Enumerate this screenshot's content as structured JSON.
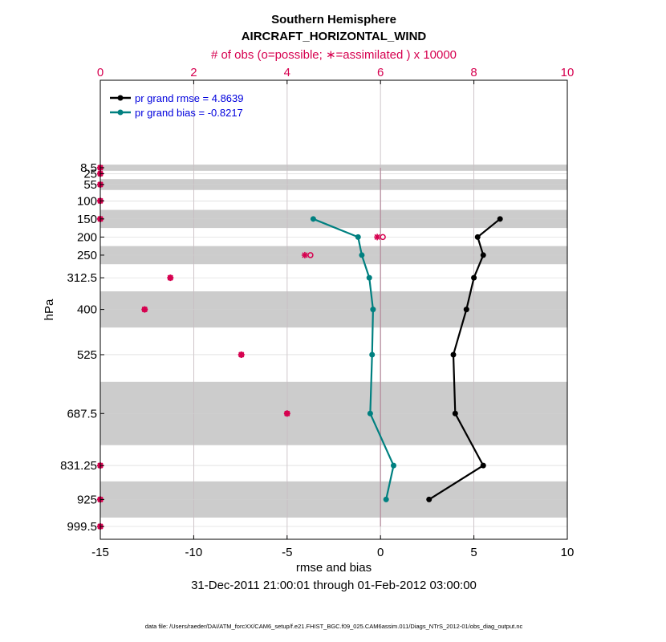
{
  "chart_data": {
    "type": "line",
    "title": "Southern Hemisphere",
    "subtitle": "AIRCRAFT_HORIZONTAL_WIND",
    "top_axis_label": "# of obs (o=possible; ∗=assimilated ) x 10000",
    "xlabel": "rmse and bias",
    "ylabel": "hPa",
    "date_range": "31-Dec-2011 21:00:01 through 01-Feb-2012 03:00:00",
    "footnote": "data file: /Users/raeder/DAI/ATM_forcXX/CAM6_setup/f.e21.FHIST_BGC.f09_025.CAM6assim.011/Diags_NTrS_2012-01/obs_diag_output.nc",
    "xlim": [
      -15,
      10
    ],
    "x_ticks": [
      "-15",
      "-10",
      "-5",
      "0",
      "5",
      "10"
    ],
    "top_xlim": [
      0,
      10
    ],
    "top_ticks": [
      "0",
      "2",
      "4",
      "6",
      "8",
      "10"
    ],
    "levels": [
      8.5,
      25,
      55,
      100,
      150,
      200,
      250,
      312.5,
      400,
      525,
      687.5,
      831.25,
      925,
      999.5
    ],
    "level_labels": [
      "8.5",
      "25",
      "55",
      "100",
      "150",
      "200",
      "250",
      "312.5",
      "400",
      "525",
      "687.5",
      "831.25",
      "925",
      "999.5"
    ],
    "shaded_bands_hPa": [
      [
        0,
        17
      ],
      [
        40,
        70
      ],
      [
        125,
        175
      ],
      [
        225,
        275
      ],
      [
        350,
        450
      ],
      [
        600,
        775
      ],
      [
        875,
        975
      ]
    ],
    "series": [
      {
        "name": "pr grand rmse",
        "legend": "pr grand rmse = 4.8639",
        "color": "#000000",
        "levels": [
          150,
          200,
          250,
          312.5,
          400,
          525,
          687.5,
          831.25,
          925
        ],
        "values": [
          6.4,
          5.2,
          5.5,
          5.0,
          4.6,
          3.9,
          4.0,
          5.5,
          2.6
        ]
      },
      {
        "name": "pr grand bias",
        "legend": "pr grand bias = -0.8217",
        "color": "#008080",
        "levels": [
          150,
          200,
          250,
          312.5,
          400,
          525,
          687.5,
          831.25,
          925
        ],
        "values": [
          -3.6,
          -1.2,
          -1.0,
          -0.6,
          -0.4,
          -0.45,
          -0.55,
          0.7,
          0.3
        ]
      }
    ],
    "obs_possible": {
      "levels": [
        8.5,
        25,
        55,
        100,
        150,
        200,
        250,
        312.5,
        400,
        525,
        687.5,
        831.25,
        925,
        999.5
      ],
      "values": [
        0,
        0,
        0,
        0,
        0,
        6.05,
        4.5,
        1.5,
        0.95,
        3.02,
        4.0,
        0,
        0,
        0
      ]
    },
    "obs_assimilated": {
      "levels": [
        8.5,
        25,
        55,
        100,
        150,
        200,
        250,
        312.5,
        400,
        525,
        687.5,
        831.25,
        925,
        999.5
      ],
      "values": [
        0,
        0,
        0,
        0,
        0,
        5.93,
        4.38,
        1.5,
        0.95,
        3.02,
        4.0,
        0,
        0,
        0
      ]
    },
    "colors": {
      "obs": "#d6004f",
      "grid_top": "#c9a6b4",
      "band": "#cccccc"
    }
  }
}
